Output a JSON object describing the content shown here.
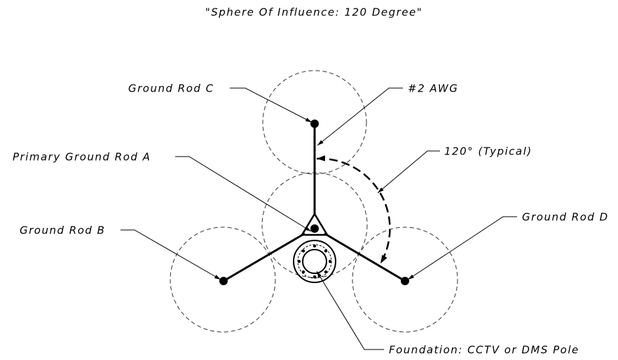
{
  "title": "\"Sphere Of Influence: 120 Degree\"",
  "labels": {
    "rod_c": "Ground Rod C",
    "awg": "#2 AWG",
    "angle": "120° (Typical)",
    "rod_a": "Primary Ground Rod A",
    "rod_b": "Ground Rod B",
    "rod_d": "Ground Rod D",
    "foundation": "Foundation: CCTV or DMS Pole"
  }
}
